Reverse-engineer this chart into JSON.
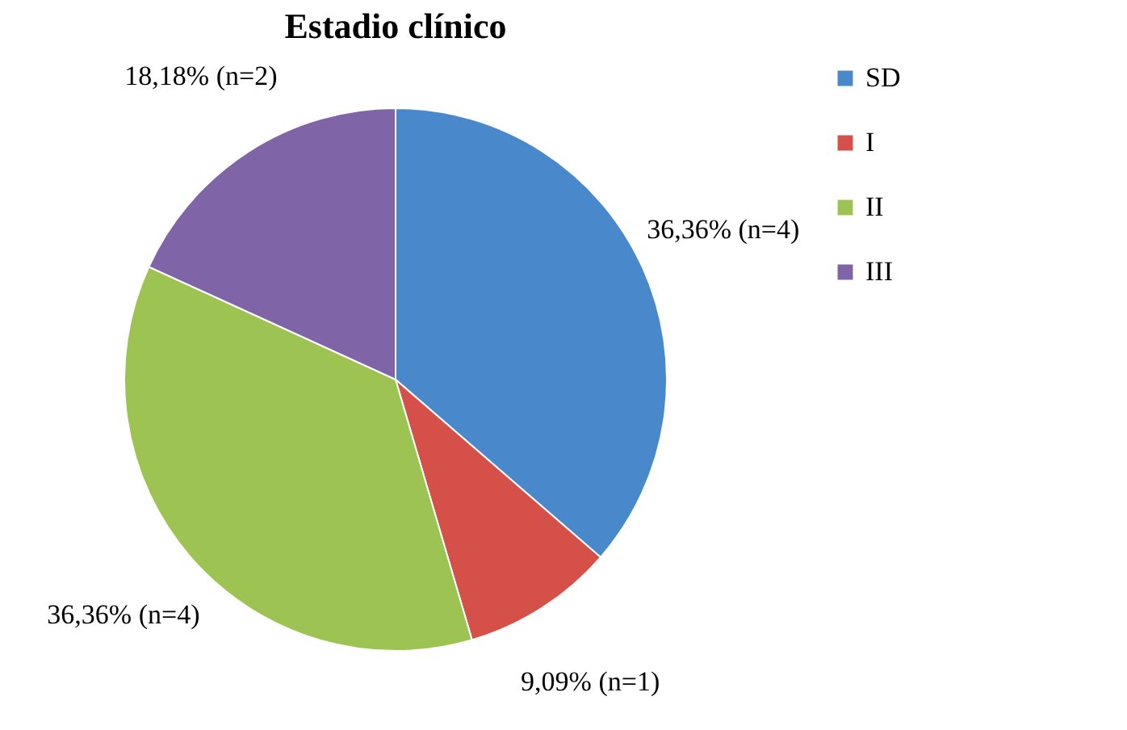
{
  "chart_data": {
    "type": "pie",
    "title": "Estadio clínico",
    "categories": [
      "SD",
      "I",
      "II",
      "III"
    ],
    "values": [
      36.36,
      9.09,
      36.36,
      18.18
    ],
    "colors": [
      "#4a88cc",
      "#d6504a",
      "#9dc452",
      "#8064a8"
    ],
    "value_labels": [
      "36,36% (n=4)",
      "9,09% (n=1)",
      "36,36% (n=4)",
      "18,18% (n=2)"
    ],
    "legend": "right"
  }
}
